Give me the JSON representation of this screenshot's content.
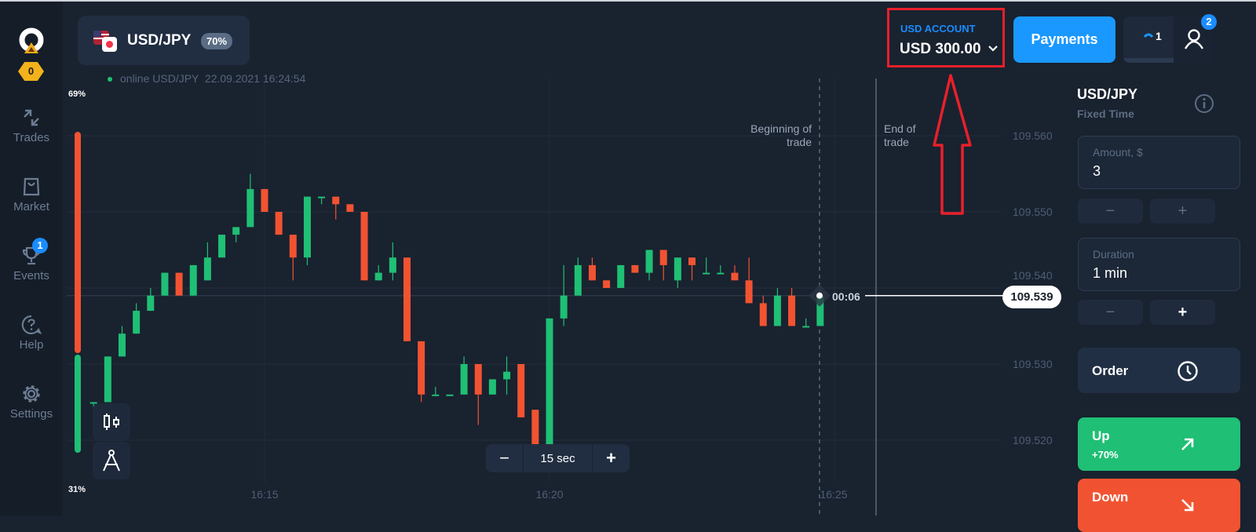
{
  "header": {
    "pair": "USD/JPY",
    "payout": "70%",
    "status": "online USD/JPY  22.09.2021 16:24:54",
    "account_label": "USD ACCOUNT",
    "balance": "USD 300.00",
    "payments_label": "Payments",
    "trades_count": "1",
    "notifications": "2"
  },
  "sidebar": {
    "score": "0",
    "items": [
      {
        "label": "Trades",
        "icon": "arrows-icon"
      },
      {
        "label": "Market",
        "icon": "bag-icon"
      },
      {
        "label": "Events",
        "icon": "trophy-icon",
        "badge": "1"
      },
      {
        "label": "Help",
        "icon": "help-icon"
      },
      {
        "label": "Settings",
        "icon": "gear-icon"
      }
    ]
  },
  "chart": {
    "sentiment_top": "69%",
    "sentiment_bottom": "31%",
    "sentiment_up_fraction": 0.31,
    "begin_label": "Beginning of trade",
    "end_label": "End of trade",
    "countdown": "00:06",
    "current_price": "109.539",
    "timeframe": "15 sec",
    "tf_minus": "−",
    "tf_plus": "+"
  },
  "chart_data": {
    "type": "candlestick",
    "y_ticks": [
      "109.560",
      "109.550",
      "109.540",
      "109.530",
      "109.520"
    ],
    "x_ticks": [
      "16:15",
      "16:20",
      "16:25"
    ],
    "colors": {
      "up": "#1fbf75",
      "down": "#f15332"
    },
    "candles": [
      [
        "16:12:00",
        109.525,
        109.525,
        109.521,
        109.525
      ],
      [
        "16:12:15",
        109.525,
        109.531,
        109.525,
        109.531
      ],
      [
        "16:12:30",
        109.531,
        109.535,
        109.531,
        109.534
      ],
      [
        "16:12:45",
        109.534,
        109.538,
        109.534,
        109.537
      ],
      [
        "16:13:00",
        109.537,
        109.54,
        109.537,
        109.539
      ],
      [
        "16:13:15",
        109.539,
        109.542,
        109.539,
        109.542
      ],
      [
        "16:13:30",
        109.542,
        109.542,
        109.539,
        109.539
      ],
      [
        "16:13:45",
        109.539,
        109.543,
        109.539,
        109.543
      ],
      [
        "16:14:00",
        109.541,
        109.546,
        109.541,
        109.544
      ],
      [
        "16:14:15",
        109.544,
        109.547,
        109.544,
        109.547
      ],
      [
        "16:14:30",
        109.547,
        109.548,
        109.546,
        109.548
      ],
      [
        "16:14:45",
        109.548,
        109.555,
        109.548,
        109.553
      ],
      [
        "16:15:00",
        109.553,
        109.553,
        109.55,
        109.55
      ],
      [
        "16:15:15",
        109.55,
        109.55,
        109.547,
        109.547
      ],
      [
        "16:15:30",
        109.547,
        109.547,
        109.541,
        109.544
      ],
      [
        "16:15:45",
        109.544,
        109.552,
        109.543,
        109.552
      ],
      [
        "16:16:00",
        109.552,
        109.552,
        109.551,
        109.552
      ],
      [
        "16:16:15",
        109.552,
        109.552,
        109.549,
        109.551
      ],
      [
        "16:16:30",
        109.551,
        109.551,
        109.55,
        109.55
      ],
      [
        "16:16:45",
        109.55,
        109.55,
        109.541,
        109.541
      ],
      [
        "16:17:00",
        109.541,
        109.543,
        109.541,
        109.542
      ],
      [
        "16:17:15",
        109.542,
        109.546,
        109.541,
        109.544
      ],
      [
        "16:17:30",
        109.544,
        109.544,
        109.533,
        109.533
      ],
      [
        "16:17:45",
        109.533,
        109.533,
        109.525,
        109.526
      ],
      [
        "16:18:00",
        109.526,
        109.527,
        109.526,
        109.526
      ],
      [
        "16:18:15",
        109.526,
        109.526,
        109.526,
        109.526
      ],
      [
        "16:18:30",
        109.526,
        109.531,
        109.526,
        109.53
      ],
      [
        "16:18:45",
        109.53,
        109.53,
        109.522,
        109.526
      ],
      [
        "16:19:00",
        109.526,
        109.528,
        109.526,
        109.528
      ],
      [
        "16:19:15",
        109.528,
        109.531,
        109.526,
        109.529
      ],
      [
        "16:19:30",
        109.53,
        109.53,
        109.523,
        109.523
      ],
      [
        "16:19:45",
        109.524,
        109.524,
        109.519,
        109.519
      ],
      [
        "16:20:00",
        109.519,
        109.536,
        109.519,
        109.536
      ],
      [
        "16:20:15",
        109.536,
        109.543,
        109.535,
        109.539
      ],
      [
        "16:20:30",
        109.539,
        109.544,
        109.539,
        109.543
      ],
      [
        "16:20:45",
        109.543,
        109.544,
        109.541,
        109.541
      ],
      [
        "16:21:00",
        109.541,
        109.541,
        109.54,
        109.54
      ],
      [
        "16:21:15",
        109.54,
        109.543,
        109.54,
        109.543
      ],
      [
        "16:21:30",
        109.543,
        109.543,
        109.542,
        109.542
      ],
      [
        "16:21:45",
        109.542,
        109.545,
        109.541,
        109.545
      ],
      [
        "16:22:00",
        109.545,
        109.545,
        109.541,
        109.543
      ],
      [
        "16:22:15",
        109.541,
        109.544,
        109.54,
        109.544
      ],
      [
        "16:22:30",
        109.544,
        109.544,
        109.541,
        109.543
      ],
      [
        "16:22:45",
        109.542,
        109.544,
        109.542,
        109.542
      ],
      [
        "16:23:00",
        109.542,
        109.543,
        109.542,
        109.542
      ],
      [
        "16:23:15",
        109.542,
        109.543,
        109.541,
        109.541
      ],
      [
        "16:23:30",
        109.541,
        109.544,
        109.538,
        109.538
      ],
      [
        "16:23:45",
        109.538,
        109.539,
        109.535,
        109.535
      ],
      [
        "16:24:00",
        109.535,
        109.54,
        109.535,
        109.539
      ],
      [
        "16:24:15",
        109.539,
        109.54,
        109.535,
        109.535
      ],
      [
        "16:24:30",
        109.535,
        109.536,
        109.535,
        109.535
      ],
      [
        "16:24:45",
        109.535,
        109.539,
        109.535,
        109.539
      ]
    ]
  },
  "panel": {
    "pair": "USD/JPY",
    "mode": "Fixed Time",
    "amount_label": "Amount, $",
    "amount": "3",
    "duration_label": "Duration",
    "duration": "1 min",
    "minus": "−",
    "plus": "+",
    "order_label": "Order",
    "up_label": "Up",
    "up_payout": "+70%",
    "down_label": "Down"
  }
}
